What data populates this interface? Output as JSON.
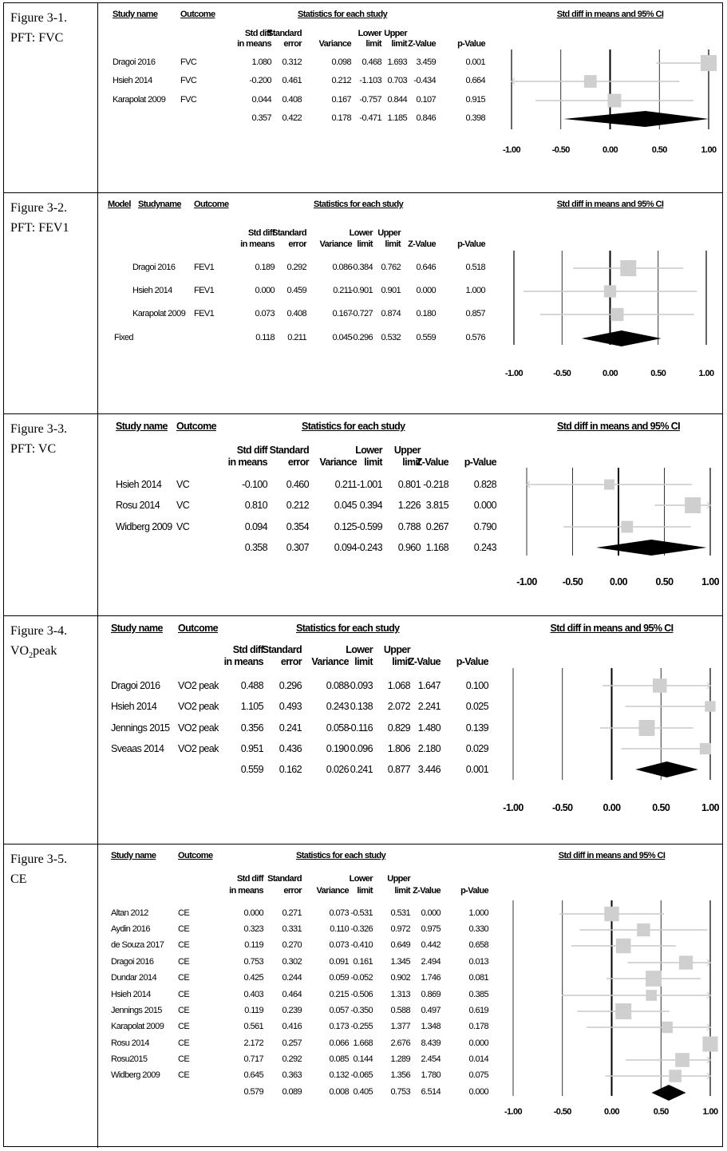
{
  "panels": [
    {
      "label": [
        "Figure 3-1.",
        "PFT: FVC"
      ],
      "head": {
        "study": "Study name",
        "outcome": "Outcome",
        "stats": "Statistics for each study",
        "ci": "Std diff in means and 95% CI"
      },
      "cols": [
        [
          "Std diff",
          "in means"
        ],
        [
          "Standard",
          "error"
        ],
        [
          "",
          "Variance"
        ],
        [
          "Lower",
          "limit"
        ],
        [
          "Upper",
          "limit"
        ],
        [
          "",
          "Z-Value"
        ],
        [
          "",
          "p-Value"
        ]
      ],
      "rows": [
        {
          "study": "Dragoi 2016",
          "outcome": "FVC",
          "vals": [
            "1.080",
            "0.312",
            "0.098",
            "0.468",
            "1.693",
            "3.459",
            "0.001"
          ]
        },
        {
          "study": "Hsieh 2014",
          "outcome": "FVC",
          "vals": [
            "-0.200",
            "0.461",
            "0.212",
            "-1.103",
            "0.703",
            "-0.434",
            "0.664"
          ]
        },
        {
          "study": "Karapolat 2009",
          "outcome": "FVC",
          "vals": [
            "0.044",
            "0.408",
            "0.167",
            "-0.757",
            "0.844",
            "0.107",
            "0.915"
          ]
        },
        {
          "study": "",
          "outcome": "",
          "vals": [
            "0.357",
            "0.422",
            "0.178",
            "-0.471",
            "1.185",
            "0.846",
            "0.398"
          ]
        }
      ],
      "axis": [
        "-1.00",
        "-0.50",
        "0.00",
        "0.50",
        "1.00"
      ]
    },
    {
      "label": [
        "Figure 3-2.",
        "PFT: FEV1"
      ],
      "head": {
        "model": "Model",
        "study": "Studyname",
        "outcome": "Outcome",
        "stats": "Statistics for each study",
        "ci": "Std diff in means and 95% CI"
      },
      "cols": [
        [
          "Std diff",
          "in means"
        ],
        [
          "Standard",
          "error"
        ],
        [
          "",
          "Variance"
        ],
        [
          "Lower",
          "limit"
        ],
        [
          "Upper",
          "limit"
        ],
        [
          "",
          "Z-Value"
        ],
        [
          "",
          "p-Value"
        ]
      ],
      "rows": [
        {
          "study": "Dragoi 2016",
          "outcome": "FEV1",
          "vals": [
            "0.189",
            "0.292",
            "0.086",
            "-0.384",
            "0.762",
            "0.646",
            "0.518"
          ]
        },
        {
          "study": "Hsieh 2014",
          "outcome": "FEV1",
          "vals": [
            "0.000",
            "0.459",
            "0.211",
            "-0.901",
            "0.901",
            "0.000",
            "1.000"
          ]
        },
        {
          "study": "Karapolat 2009",
          "outcome": "FEV1",
          "vals": [
            "0.073",
            "0.408",
            "0.167",
            "-0.727",
            "0.874",
            "0.180",
            "0.857"
          ]
        },
        {
          "study": "Fixed",
          "outcome": "",
          "vals": [
            "0.118",
            "0.211",
            "0.045",
            "-0.296",
            "0.532",
            "0.559",
            "0.576"
          ]
        }
      ],
      "axis": [
        "-1.00",
        "-0.50",
        "0.00",
        "0.50",
        "1.00"
      ]
    },
    {
      "label": [
        "Figure 3-3.",
        "PFT: VC"
      ],
      "head": {
        "study": "Study name",
        "outcome": "Outcome",
        "stats": "Statistics for each study",
        "ci": "Std diff in means and 95% CI"
      },
      "cols": [
        [
          "Std diff",
          "in means"
        ],
        [
          "Standard",
          "error"
        ],
        [
          "",
          "Variance"
        ],
        [
          "Lower",
          "limit"
        ],
        [
          "Upper",
          "limit"
        ],
        [
          "",
          "Z-Value"
        ],
        [
          "",
          "p-Value"
        ]
      ],
      "rows": [
        {
          "study": "Hsieh 2014",
          "outcome": "VC",
          "vals": [
            "-0.100",
            "0.460",
            "0.211",
            "-1.001",
            "0.801",
            "-0.218",
            "0.828"
          ]
        },
        {
          "study": "Rosu 2014",
          "outcome": "VC",
          "vals": [
            "0.810",
            "0.212",
            "0.045",
            "0.394",
            "1.226",
            "3.815",
            "0.000"
          ]
        },
        {
          "study": "Widberg 2009",
          "outcome": "VC",
          "vals": [
            "0.094",
            "0.354",
            "0.125",
            "-0.599",
            "0.788",
            "0.267",
            "0.790"
          ]
        },
        {
          "study": "",
          "outcome": "",
          "vals": [
            "0.358",
            "0.307",
            "0.094",
            "-0.243",
            "0.960",
            "1.168",
            "0.243"
          ]
        }
      ],
      "axis": [
        "-1.00",
        "-0.50",
        "0.00",
        "0.50",
        "1.00"
      ]
    },
    {
      "label": [
        "Figure 3-4.",
        "VO",
        "2",
        "peak"
      ],
      "head": {
        "study": "Study name",
        "outcome": "Outcome",
        "stats": "Statistics for each study",
        "ci": "Std diff in means and 95% CI"
      },
      "cols": [
        [
          "Std diff",
          "in means"
        ],
        [
          "Standard",
          "error"
        ],
        [
          "",
          "Variance"
        ],
        [
          "Lower",
          "limit"
        ],
        [
          "Upper",
          "limit"
        ],
        [
          "",
          "Z-Value"
        ],
        [
          "",
          "p-Value"
        ]
      ],
      "rows": [
        {
          "study": "Dragoi 2016",
          "outcome": "VO2 peak",
          "vals": [
            "0.488",
            "0.296",
            "0.088",
            "-0.093",
            "1.068",
            "1.647",
            "0.100"
          ]
        },
        {
          "study": "Hsieh 2014",
          "outcome": "VO2 peak",
          "vals": [
            "1.105",
            "0.493",
            "0.243",
            "0.138",
            "2.072",
            "2.241",
            "0.025"
          ]
        },
        {
          "study": "Jennings 2015",
          "outcome": "VO2 peak",
          "vals": [
            "0.356",
            "0.241",
            "0.058",
            "-0.116",
            "0.829",
            "1.480",
            "0.139"
          ]
        },
        {
          "study": "Sveaas 2014",
          "outcome": "VO2 peak",
          "vals": [
            "0.951",
            "0.436",
            "0.190",
            "0.096",
            "1.806",
            "2.180",
            "0.029"
          ]
        },
        {
          "study": "",
          "outcome": "",
          "vals": [
            "0.559",
            "0.162",
            "0.026",
            "0.241",
            "0.877",
            "3.446",
            "0.001"
          ]
        }
      ],
      "axis": [
        "-1.00",
        "-0.50",
        "0.00",
        "0.50",
        "1.00"
      ]
    },
    {
      "label": [
        "Figure 3-5.",
        "CE"
      ],
      "head": {
        "study": "Study name",
        "outcome": "Outcome",
        "stats": "Statistics for each study",
        "ci": "Std diff in means and 95% CI"
      },
      "cols": [
        [
          "Std diff",
          "in means"
        ],
        [
          "Standard",
          "error"
        ],
        [
          "",
          "Variance"
        ],
        [
          "Lower",
          "limit"
        ],
        [
          "Upper",
          "limit"
        ],
        [
          "",
          "Z-Value"
        ],
        [
          "",
          "p-Value"
        ]
      ],
      "rows": [
        {
          "study": "Altan 2012",
          "outcome": "CE",
          "vals": [
            "0.000",
            "0.271",
            "0.073",
            "-0.531",
            "0.531",
            "0.000",
            "1.000"
          ]
        },
        {
          "study": "Aydin 2016",
          "outcome": "CE",
          "vals": [
            "0.323",
            "0.331",
            "0.110",
            "-0.326",
            "0.972",
            "0.975",
            "0.330"
          ]
        },
        {
          "study": "de Souza 2017",
          "outcome": "CE",
          "vals": [
            "0.119",
            "0.270",
            "0.073",
            "-0.410",
            "0.649",
            "0.442",
            "0.658"
          ]
        },
        {
          "study": "Dragoi 2016",
          "outcome": "CE",
          "vals": [
            "0.753",
            "0.302",
            "0.091",
            "0.161",
            "1.345",
            "2.494",
            "0.013"
          ]
        },
        {
          "study": "Dundar 2014",
          "outcome": "CE",
          "vals": [
            "0.425",
            "0.244",
            "0.059",
            "-0.052",
            "0.902",
            "1.746",
            "0.081"
          ]
        },
        {
          "study": "Hsieh 2014",
          "outcome": "CE",
          "vals": [
            "0.403",
            "0.464",
            "0.215",
            "-0.506",
            "1.313",
            "0.869",
            "0.385"
          ]
        },
        {
          "study": "Jennings 2015",
          "outcome": "CE",
          "vals": [
            "0.119",
            "0.239",
            "0.057",
            "-0.350",
            "0.588",
            "0.497",
            "0.619"
          ]
        },
        {
          "study": "Karapolat 2009",
          "outcome": "CE",
          "vals": [
            "0.561",
            "0.416",
            "0.173",
            "-0.255",
            "1.377",
            "1.348",
            "0.178"
          ]
        },
        {
          "study": "Rosu 2014",
          "outcome": "CE",
          "vals": [
            "2.172",
            "0.257",
            "0.066",
            "1.668",
            "2.676",
            "8.439",
            "0.000"
          ]
        },
        {
          "study": "Rosu2015",
          "outcome": "CE",
          "vals": [
            "0.717",
            "0.292",
            "0.085",
            "0.144",
            "1.289",
            "2.454",
            "0.014"
          ]
        },
        {
          "study": "Widberg 2009",
          "outcome": "CE",
          "vals": [
            "0.645",
            "0.363",
            "0.132",
            "-0.065",
            "1.356",
            "1.780",
            "0.075"
          ]
        },
        {
          "study": "",
          "outcome": "",
          "vals": [
            "0.579",
            "0.089",
            "0.008",
            "0.405",
            "0.753",
            "6.514",
            "0.000"
          ]
        }
      ],
      "axis": [
        "-1.00",
        "-0.50",
        "0.00",
        "0.50",
        "1.00"
      ]
    }
  ],
  "chart_data": [
    {
      "type": "forest",
      "title": "Figure 3-1. PFT: FVC",
      "xlabel": "Std diff in means and 95% CI",
      "xlim": [
        -1,
        1
      ],
      "series": [
        {
          "name": "Dragoi 2016",
          "est": 1.08,
          "lo": 0.468,
          "hi": 1.693
        },
        {
          "name": "Hsieh 2014",
          "est": -0.2,
          "lo": -1.103,
          "hi": 0.703
        },
        {
          "name": "Karapolat 2009",
          "est": 0.044,
          "lo": -0.757,
          "hi": 0.844
        }
      ],
      "summary": {
        "est": 0.357,
        "lo": -0.471,
        "hi": 1.185
      }
    },
    {
      "type": "forest",
      "title": "Figure 3-2. PFT: FEV1",
      "xlabel": "Std diff in means and 95% CI",
      "xlim": [
        -1,
        1
      ],
      "series": [
        {
          "name": "Dragoi 2016",
          "est": 0.189,
          "lo": -0.384,
          "hi": 0.762
        },
        {
          "name": "Hsieh 2014",
          "est": 0.0,
          "lo": -0.901,
          "hi": 0.901
        },
        {
          "name": "Karapolat 2009",
          "est": 0.073,
          "lo": -0.727,
          "hi": 0.874
        }
      ],
      "summary": {
        "est": 0.118,
        "lo": -0.296,
        "hi": 0.532
      }
    },
    {
      "type": "forest",
      "title": "Figure 3-3. PFT: VC",
      "xlabel": "Std diff in means and 95% CI",
      "xlim": [
        -1,
        1
      ],
      "series": [
        {
          "name": "Hsieh 2014",
          "est": -0.1,
          "lo": -1.001,
          "hi": 0.801
        },
        {
          "name": "Rosu 2014",
          "est": 0.81,
          "lo": 0.394,
          "hi": 1.226
        },
        {
          "name": "Widberg 2009",
          "est": 0.094,
          "lo": -0.599,
          "hi": 0.788
        }
      ],
      "summary": {
        "est": 0.358,
        "lo": -0.243,
        "hi": 0.96
      }
    },
    {
      "type": "forest",
      "title": "Figure 3-4. VO2peak",
      "xlabel": "Std diff in means and 95% CI",
      "xlim": [
        -1,
        1
      ],
      "series": [
        {
          "name": "Dragoi 2016",
          "est": 0.488,
          "lo": -0.093,
          "hi": 1.068
        },
        {
          "name": "Hsieh 2014",
          "est": 1.105,
          "lo": 0.138,
          "hi": 2.072
        },
        {
          "name": "Jennings 2015",
          "est": 0.356,
          "lo": -0.116,
          "hi": 0.829
        },
        {
          "name": "Sveaas 2014",
          "est": 0.951,
          "lo": 0.096,
          "hi": 1.806
        }
      ],
      "summary": {
        "est": 0.559,
        "lo": 0.241,
        "hi": 0.877
      }
    },
    {
      "type": "forest",
      "title": "Figure 3-5. CE",
      "xlabel": "Std diff in means and 95% CI",
      "xlim": [
        -1,
        1
      ],
      "series": [
        {
          "name": "Altan 2012",
          "est": 0.0,
          "lo": -0.531,
          "hi": 0.531
        },
        {
          "name": "Aydin 2016",
          "est": 0.323,
          "lo": -0.326,
          "hi": 0.972
        },
        {
          "name": "de Souza 2017",
          "est": 0.119,
          "lo": -0.41,
          "hi": 0.649
        },
        {
          "name": "Dragoi 2016",
          "est": 0.753,
          "lo": 0.161,
          "hi": 1.345
        },
        {
          "name": "Dundar 2014",
          "est": 0.425,
          "lo": -0.052,
          "hi": 0.902
        },
        {
          "name": "Hsieh 2014",
          "est": 0.403,
          "lo": -0.506,
          "hi": 1.313
        },
        {
          "name": "Jennings 2015",
          "est": 0.119,
          "lo": -0.35,
          "hi": 0.588
        },
        {
          "name": "Karapolat 2009",
          "est": 0.561,
          "lo": -0.255,
          "hi": 1.377
        },
        {
          "name": "Rosu 2014",
          "est": 2.172,
          "lo": 1.668,
          "hi": 2.676
        },
        {
          "name": "Rosu2015",
          "est": 0.717,
          "lo": 0.144,
          "hi": 1.289
        },
        {
          "name": "Widberg 2009",
          "est": 0.645,
          "lo": -0.065,
          "hi": 1.356
        }
      ],
      "summary": {
        "est": 0.579,
        "lo": 0.405,
        "hi": 0.753
      }
    }
  ]
}
